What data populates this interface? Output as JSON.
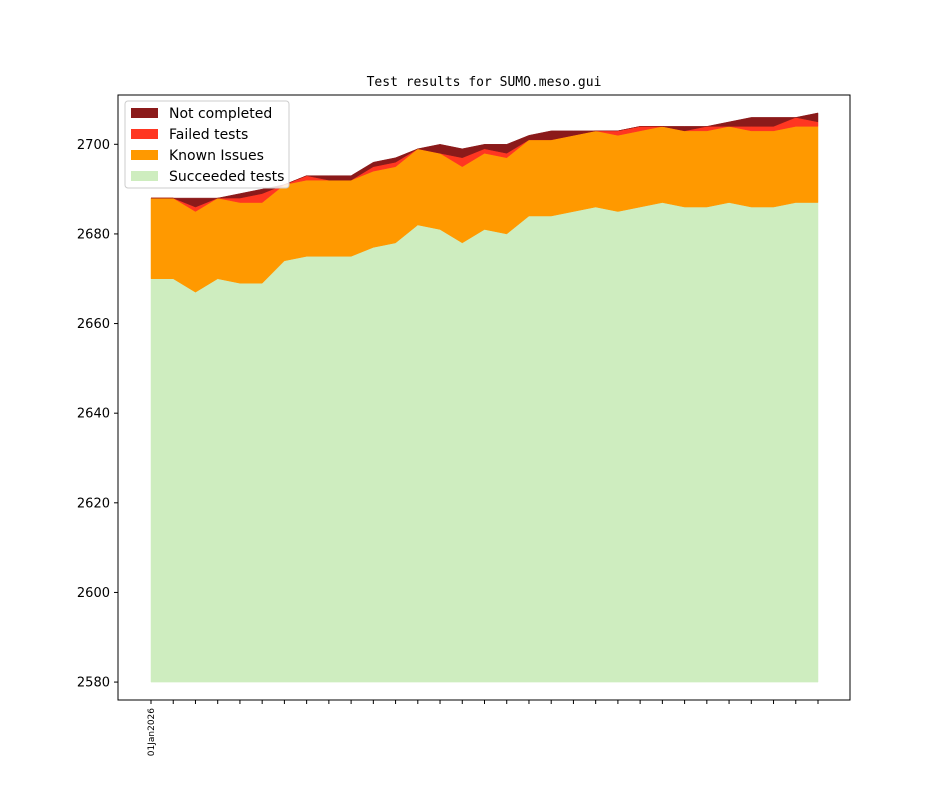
{
  "chart_data": {
    "type": "area",
    "title": "Test results for SUMO.meso.gui",
    "xlabel": "",
    "ylabel": "",
    "x_tick_labels": [
      "01Jan2026"
    ],
    "ylim": [
      2576,
      2711
    ],
    "yticks": [
      2580,
      2600,
      2620,
      2640,
      2660,
      2680,
      2700
    ],
    "baseline": 2580,
    "grid": false,
    "legend_position": "top-left",
    "colors": {
      "not_completed": "#8b1a1a",
      "failed": "#ff3621",
      "known_issues": "#ff9900",
      "succeeded": "#ceedbf"
    },
    "series": [
      {
        "name": "Succeeded tests",
        "values": [
          2670,
          2670,
          2667,
          2670,
          2669,
          2669,
          2674,
          2675,
          2675,
          2675,
          2677,
          2678,
          2682,
          2681,
          2678,
          2681,
          2680,
          2684,
          2684,
          2685,
          2686,
          2685,
          2686,
          2687,
          2686,
          2686,
          2687,
          2686,
          2686,
          2687,
          2687
        ]
      },
      {
        "name": "Known Issues",
        "values": [
          18,
          18,
          18,
          18,
          18,
          18,
          17,
          17,
          17,
          17,
          17,
          17,
          17,
          17,
          17,
          17,
          17,
          17,
          17,
          17,
          17,
          17,
          17,
          17,
          17,
          17,
          17,
          17,
          17,
          17,
          17
        ]
      },
      {
        "name": "Failed tests",
        "values": [
          0,
          0,
          1,
          0,
          1,
          2,
          0,
          1,
          0,
          0,
          1,
          1,
          0,
          0,
          2,
          1,
          1,
          0,
          0,
          0,
          0,
          1,
          1,
          0,
          0,
          1,
          0,
          1,
          1,
          2,
          1
        ]
      },
      {
        "name": "Not completed",
        "values": [
          0,
          0,
          2,
          0,
          1,
          1,
          0,
          0,
          1,
          1,
          1,
          1,
          0,
          2,
          2,
          1,
          2,
          1,
          2,
          1,
          0,
          0,
          0,
          0,
          1,
          0,
          1,
          2,
          2,
          0,
          2
        ]
      }
    ]
  }
}
